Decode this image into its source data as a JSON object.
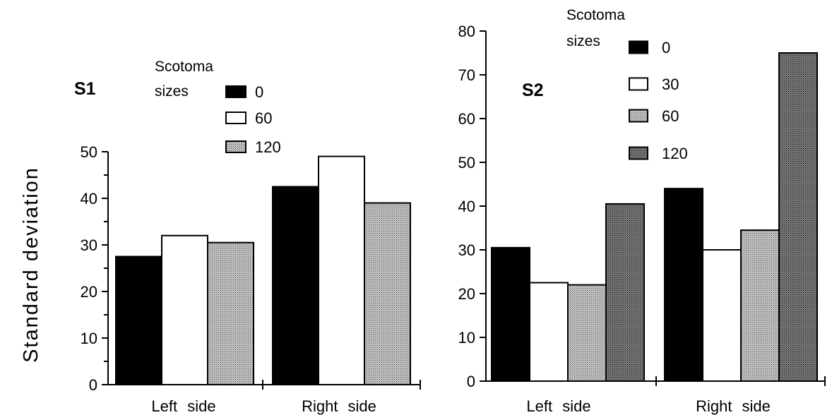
{
  "ylabel": "Standard deviation",
  "chart_data": [
    {
      "type": "bar",
      "panel_label": "S1",
      "categories": [
        "Left side",
        "Right side"
      ],
      "ylim": [
        0,
        50
      ],
      "yticks": [
        "0",
        "10",
        "20",
        "30",
        "40",
        "50"
      ],
      "legend_title": [
        "Scotoma",
        "sizes"
      ],
      "series": [
        {
          "name": "0",
          "fill": "black",
          "values": [
            27.5,
            42.5
          ]
        },
        {
          "name": "60",
          "fill": "white",
          "values": [
            32,
            49
          ]
        },
        {
          "name": "120",
          "fill": "light-stipple",
          "values": [
            30.5,
            39
          ]
        }
      ]
    },
    {
      "type": "bar",
      "panel_label": "S2",
      "categories": [
        "Left side",
        "Right side"
      ],
      "ylim": [
        0,
        80
      ],
      "yticks": [
        "0",
        "10",
        "20",
        "30",
        "40",
        "50",
        "60",
        "70",
        "80"
      ],
      "legend_title": [
        "Scotoma",
        "sizes"
      ],
      "series": [
        {
          "name": "0",
          "fill": "black",
          "values": [
            30.5,
            44
          ]
        },
        {
          "name": "30",
          "fill": "white",
          "values": [
            22.5,
            30
          ]
        },
        {
          "name": "60",
          "fill": "light-stipple",
          "values": [
            22,
            34.5
          ]
        },
        {
          "name": "120",
          "fill": "dark-stipple",
          "values": [
            40.5,
            75
          ]
        }
      ]
    }
  ]
}
